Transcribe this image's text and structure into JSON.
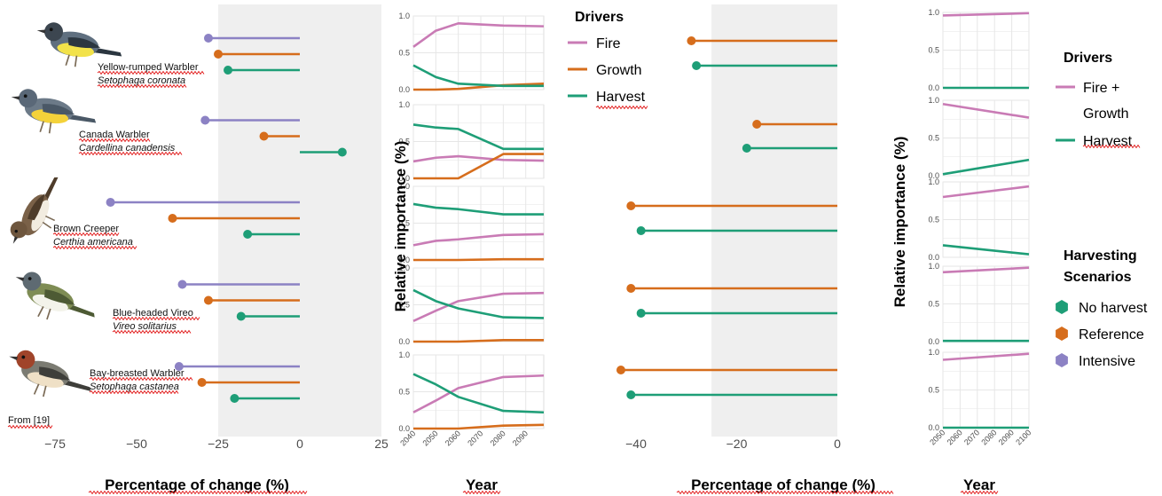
{
  "colors": {
    "fire": "#c97bb5",
    "growth": "#d66d1c",
    "harvest": "#1e9e77",
    "intensive": "#8c82c4",
    "shade": "#efefef",
    "grid": "#e6e6e6"
  },
  "source_note": "From [19]",
  "species": [
    {
      "common": "Yellow-rumped Warbler",
      "latin": "Setophaga coronata"
    },
    {
      "common": "Canada Warbler",
      "latin": "Cardellina canadensis"
    },
    {
      "common": "Brown Creeper",
      "latin": "Certhia americana"
    },
    {
      "common": "Blue-headed Vireo",
      "latin": "Vireo solitarius"
    },
    {
      "common": "Bay-breasted Warbler",
      "latin": "Setophaga castanea"
    }
  ],
  "legend_drivers": {
    "title": "Drivers",
    "items": [
      {
        "label": "Fire",
        "color": "#c97bb5"
      },
      {
        "label": "Growth",
        "color": "#d66d1c"
      },
      {
        "label": "Harvest",
        "color": "#1e9e77"
      }
    ]
  },
  "legend_drivers2": {
    "title": "Drivers",
    "items": [
      {
        "label_lines": [
          "Fire +",
          "Growth"
        ],
        "color": "#c97bb5"
      },
      {
        "label_lines": [
          "Harvest"
        ],
        "color": "#1e9e77"
      }
    ]
  },
  "legend_scenarios": {
    "title_lines": [
      "Harvesting",
      "Scenarios"
    ],
    "items": [
      {
        "label": "No harvest",
        "color": "#1e9e77"
      },
      {
        "label": "Reference",
        "color": "#d66d1c"
      },
      {
        "label": "Intensive",
        "color": "#8c82c4"
      }
    ]
  },
  "chart_data": [
    {
      "type": "lollipop",
      "xlabel": "Percentage of change (%)",
      "xlim": [
        -80,
        25
      ],
      "xticks": [
        -75,
        -50,
        -25,
        0,
        25
      ],
      "shaded_region": [
        -25,
        25
      ],
      "series": [
        {
          "name": "Intensive",
          "color": "#8c82c4",
          "values": [
            -28,
            -29,
            -58,
            -36,
            -37
          ]
        },
        {
          "name": "Reference",
          "color": "#d66d1c",
          "values": [
            -25,
            -11,
            -39,
            -28,
            -30
          ]
        },
        {
          "name": "No harvest",
          "color": "#1e9e77",
          "values": [
            -22,
            13,
            -16,
            -18,
            -20
          ]
        }
      ]
    },
    {
      "type": "line",
      "xlabel": "Year",
      "ylabel": "Relative importance (%)",
      "x": [
        2040,
        2050,
        2060,
        2080,
        2100
      ],
      "xticks": [
        2040,
        2050,
        2060,
        2070,
        2080,
        2090
      ],
      "xlim": [
        2040,
        2098
      ],
      "ylim": [
        0,
        1
      ],
      "yticks": [
        0.0,
        0.5,
        1.0
      ],
      "panels": [
        {
          "series": [
            {
              "name": "Fire",
              "color": "#c97bb5",
              "values": [
                0.58,
                0.8,
                0.9,
                0.87,
                0.86
              ]
            },
            {
              "name": "Growth",
              "color": "#d66d1c",
              "values": [
                0.0,
                0.0,
                0.01,
                0.06,
                0.08
              ]
            },
            {
              "name": "Harvest",
              "color": "#1e9e77",
              "values": [
                0.33,
                0.17,
                0.08,
                0.05,
                0.05
              ]
            }
          ]
        },
        {
          "series": [
            {
              "name": "Fire",
              "color": "#c97bb5",
              "values": [
                0.23,
                0.28,
                0.3,
                0.25,
                0.24
              ]
            },
            {
              "name": "Growth",
              "color": "#d66d1c",
              "values": [
                0.0,
                0.0,
                0.0,
                0.33,
                0.33
              ]
            },
            {
              "name": "Harvest",
              "color": "#1e9e77",
              "values": [
                0.73,
                0.69,
                0.67,
                0.4,
                0.4
              ]
            }
          ]
        },
        {
          "series": [
            {
              "name": "Fire",
              "color": "#c97bb5",
              "values": [
                0.2,
                0.26,
                0.28,
                0.34,
                0.35
              ]
            },
            {
              "name": "Growth",
              "color": "#d66d1c",
              "values": [
                0.0,
                0.0,
                0.0,
                0.01,
                0.01
              ]
            },
            {
              "name": "Harvest",
              "color": "#1e9e77",
              "values": [
                0.76,
                0.71,
                0.69,
                0.62,
                0.62
              ]
            }
          ]
        },
        {
          "series": [
            {
              "name": "Fire",
              "color": "#c97bb5",
              "values": [
                0.28,
                0.42,
                0.55,
                0.65,
                0.66
              ]
            },
            {
              "name": "Growth",
              "color": "#d66d1c",
              "values": [
                0.0,
                0.0,
                0.0,
                0.02,
                0.02
              ]
            },
            {
              "name": "Harvest",
              "color": "#1e9e77",
              "values": [
                0.7,
                0.55,
                0.45,
                0.33,
                0.32
              ]
            }
          ]
        },
        {
          "series": [
            {
              "name": "Fire",
              "color": "#c97bb5",
              "values": [
                0.22,
                0.38,
                0.55,
                0.7,
                0.72
              ]
            },
            {
              "name": "Growth",
              "color": "#d66d1c",
              "values": [
                0.0,
                0.0,
                0.0,
                0.04,
                0.05
              ]
            },
            {
              "name": "Harvest",
              "color": "#1e9e77",
              "values": [
                0.74,
                0.6,
                0.43,
                0.24,
                0.22
              ]
            }
          ]
        }
      ]
    },
    {
      "type": "lollipop",
      "xlabel": "Percentage of change (%)",
      "xlim": [
        -47,
        0
      ],
      "xticks": [
        -40,
        -20,
        0
      ],
      "shaded_region": [
        -25,
        0
      ],
      "series": [
        {
          "name": "Reference",
          "color": "#d66d1c",
          "values": [
            -29,
            -16,
            -41,
            -41,
            -43
          ]
        },
        {
          "name": "No harvest",
          "color": "#1e9e77",
          "values": [
            -28,
            -18,
            -39,
            -39,
            -41
          ]
        }
      ]
    },
    {
      "type": "line",
      "xlabel": "Year",
      "ylabel": "Relative importance (%)",
      "x": [
        2050,
        2100
      ],
      "xticks": [
        2050,
        2060,
        2070,
        2080,
        2090,
        2100
      ],
      "xlim": [
        2050,
        2100
      ],
      "ylim": [
        0,
        1
      ],
      "yticks": [
        0.0,
        0.5,
        1.0
      ],
      "panels": [
        {
          "series": [
            {
              "name": "Fire + Growth",
              "color": "#c97bb5",
              "values": [
                0.96,
                0.99
              ]
            },
            {
              "name": "Harvest",
              "color": "#1e9e77",
              "values": [
                0.0,
                0.0
              ]
            }
          ]
        },
        {
          "series": [
            {
              "name": "Fire + Growth",
              "color": "#c97bb5",
              "values": [
                0.95,
                0.77
              ]
            },
            {
              "name": "Harvest",
              "color": "#1e9e77",
              "values": [
                0.02,
                0.21
              ]
            }
          ]
        },
        {
          "series": [
            {
              "name": "Fire + Growth",
              "color": "#c97bb5",
              "values": [
                0.8,
                0.94
              ]
            },
            {
              "name": "Harvest",
              "color": "#1e9e77",
              "values": [
                0.16,
                0.04
              ]
            }
          ]
        },
        {
          "series": [
            {
              "name": "Fire + Growth",
              "color": "#c97bb5",
              "values": [
                0.92,
                0.98
              ]
            },
            {
              "name": "Harvest",
              "color": "#1e9e77",
              "values": [
                0.01,
                0.01
              ]
            }
          ]
        },
        {
          "series": [
            {
              "name": "Fire + Growth",
              "color": "#c97bb5",
              "values": [
                0.9,
                0.98
              ]
            },
            {
              "name": "Harvest",
              "color": "#1e9e77",
              "values": [
                0.0,
                0.0
              ]
            }
          ]
        }
      ]
    }
  ]
}
